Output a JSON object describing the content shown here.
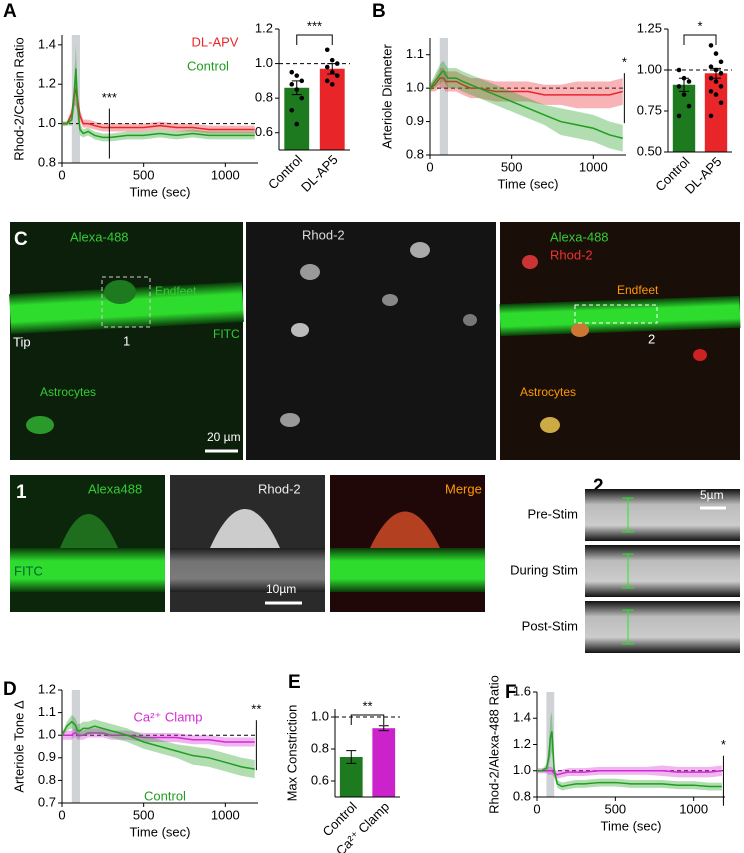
{
  "chart_data": [
    {
      "type": "line",
      "panel": "A",
      "ylabel": "Rhod-2/Calcein Ratio",
      "xlabel": "Time (sec)",
      "xlim": [
        0,
        1200
      ],
      "xticks": [
        0,
        500,
        1000
      ],
      "ylim": [
        0.8,
        1.45
      ],
      "yticks": [
        0.8,
        {
          "value": 1,
          "label": "1.0"
        },
        1.2,
        1.4
      ],
      "shaded": [
        60,
        110
      ],
      "hline": 1,
      "annotations": [
        {
          "text": "***",
          "x": 290
        }
      ],
      "x": [
        0,
        30,
        60,
        75,
        85,
        95,
        110,
        130,
        160,
        200,
        250,
        300,
        400,
        500,
        600,
        700,
        800,
        900,
        1000,
        1100,
        1180
      ],
      "series": [
        {
          "name": "DL-APV",
          "color": "#e8262a",
          "values": [
            1.0,
            1.0,
            1.05,
            1.15,
            1.17,
            1.12,
            1.04,
            1.0,
            1.0,
            0.99,
            0.98,
            0.98,
            0.98,
            0.98,
            0.99,
            0.98,
            0.98,
            0.97,
            0.97,
            0.97,
            0.97
          ],
          "errors": [
            0.01,
            0.01,
            0.03,
            0.06,
            0.08,
            0.06,
            0.03,
            0.02,
            0.02,
            0.02,
            0.02,
            0.02,
            0.02,
            0.02,
            0.02,
            0.02,
            0.02,
            0.02,
            0.02,
            0.02,
            0.02
          ]
        },
        {
          "name": "Control",
          "color": "#1f9e1f",
          "values": [
            1.0,
            1.0,
            1.02,
            1.15,
            1.28,
            1.1,
            0.97,
            0.95,
            0.96,
            0.94,
            0.93,
            0.93,
            0.94,
            0.94,
            0.95,
            0.94,
            0.95,
            0.94,
            0.94,
            0.94,
            0.94
          ],
          "errors": [
            0.01,
            0.01,
            0.03,
            0.08,
            0.12,
            0.08,
            0.03,
            0.02,
            0.02,
            0.02,
            0.02,
            0.02,
            0.02,
            0.02,
            0.02,
            0.02,
            0.02,
            0.02,
            0.02,
            0.02,
            0.02
          ]
        }
      ]
    },
    {
      "type": "bar",
      "categories": [
        "Control",
        "DL-AP5"
      ],
      "values": [
        0.86,
        0.97
      ],
      "errors": [
        0.04,
        0.03
      ],
      "colors": [
        "#1e7a1e",
        "#e8262a"
      ],
      "points": [
        [
          0.95,
          0.93,
          0.9,
          0.88,
          0.85,
          0.8,
          0.73,
          0.65
        ],
        [
          1.08,
          1.02,
          1.0,
          0.98,
          0.95,
          0.93,
          0.9,
          0.88
        ]
      ],
      "ylim": [
        0.5,
        1.2
      ],
      "yticks": [
        0.6,
        0.8,
        {
          "value": 1,
          "label": "1.0"
        },
        1.2
      ],
      "hline": 1,
      "significance": "***"
    },
    {
      "type": "line",
      "panel": "B",
      "ylabel": "Arteriole Diameter",
      "xlabel": "Time (sec)",
      "xlim": [
        0,
        1200
      ],
      "xticks": [
        0,
        500,
        1000
      ],
      "ylim": [
        0.8,
        1.15
      ],
      "yticks": [
        0.8,
        0.9,
        {
          "value": 1,
          "label": "1.0"
        },
        1.1
      ],
      "shaded": [
        60,
        110
      ],
      "hline": 1,
      "annotations": [
        {
          "text": "*",
          "x": 1190
        }
      ],
      "x": [
        0,
        30,
        60,
        75,
        85,
        95,
        110,
        130,
        160,
        200,
        250,
        300,
        400,
        500,
        600,
        700,
        800,
        900,
        1000,
        1100,
        1180
      ],
      "series": [
        {
          "color": "#e8262a",
          "values": [
            1.0,
            1.01,
            1.03,
            1.03,
            1.03,
            1.02,
            1.02,
            1.02,
            1.02,
            1.01,
            1.0,
            1.0,
            0.99,
            0.99,
            0.99,
            0.98,
            0.98,
            0.98,
            0.98,
            0.98,
            0.99
          ],
          "errors": [
            0.01,
            0.02,
            0.03,
            0.03,
            0.03,
            0.03,
            0.03,
            0.03,
            0.03,
            0.03,
            0.03,
            0.03,
            0.03,
            0.03,
            0.03,
            0.03,
            0.03,
            0.04,
            0.04,
            0.04,
            0.04
          ]
        },
        {
          "color": "#1f9e1f",
          "values": [
            1.0,
            1.02,
            1.04,
            1.05,
            1.05,
            1.04,
            1.03,
            1.03,
            1.03,
            1.02,
            1.01,
            1.0,
            0.98,
            0.96,
            0.94,
            0.92,
            0.9,
            0.89,
            0.88,
            0.86,
            0.85
          ],
          "errors": [
            0.01,
            0.02,
            0.03,
            0.03,
            0.03,
            0.03,
            0.03,
            0.03,
            0.03,
            0.03,
            0.03,
            0.03,
            0.03,
            0.03,
            0.03,
            0.03,
            0.04,
            0.04,
            0.04,
            0.04,
            0.04
          ]
        }
      ]
    },
    {
      "type": "bar",
      "categories": [
        "Control",
        "DL-AP5"
      ],
      "values": [
        0.91,
        0.98
      ],
      "errors": [
        0.04,
        0.03
      ],
      "colors": [
        "#1e7a1e",
        "#e8262a"
      ],
      "points": [
        [
          1.0,
          0.95,
          0.93,
          0.9,
          0.85,
          0.78,
          0.72
        ],
        [
          1.15,
          1.1,
          1.05,
          1.02,
          1.0,
          0.98,
          0.95,
          0.93,
          0.9,
          0.87,
          0.85,
          0.8,
          0.72
        ]
      ],
      "ylim": [
        0.5,
        1.25
      ],
      "yticks": [
        {
          "value": 0.5,
          "label": "0.50"
        },
        0.75,
        {
          "value": 1,
          "label": "1.00"
        },
        1.25
      ],
      "hline": 1,
      "significance": "*"
    },
    {
      "type": "line",
      "panel": "D",
      "ylabel": "Arteriole Tone Δ",
      "xlabel": "Time (sec)",
      "xlim": [
        0,
        1200
      ],
      "xticks": [
        0,
        500,
        1000
      ],
      "ylim": [
        0.7,
        1.2
      ],
      "yticks": [
        0.7,
        0.8,
        0.9,
        {
          "value": 1,
          "label": "1.0"
        },
        1.1,
        1.2
      ],
      "shaded": [
        60,
        110
      ],
      "hline": 1,
      "annotations": [
        {
          "text": "**",
          "x": 1190
        }
      ],
      "x": [
        0,
        30,
        60,
        75,
        85,
        95,
        110,
        130,
        160,
        200,
        250,
        300,
        400,
        500,
        600,
        700,
        800,
        900,
        1000,
        1100,
        1180
      ],
      "series": [
        {
          "name": "Ca²⁺ Clamp",
          "color": "#d42ad4",
          "values": [
            1.0,
            1.0,
            1.0,
            1.01,
            1.01,
            1.0,
            1.0,
            1.0,
            1.01,
            1.01,
            1.01,
            1.0,
            1.0,
            0.99,
            0.99,
            0.99,
            0.98,
            0.98,
            0.97,
            0.97,
            0.97
          ],
          "errors": [
            0.02,
            0.02,
            0.02,
            0.02,
            0.02,
            0.02,
            0.02,
            0.02,
            0.02,
            0.02,
            0.02,
            0.02,
            0.02,
            0.02,
            0.02,
            0.02,
            0.02,
            0.02,
            0.02,
            0.02,
            0.02
          ]
        },
        {
          "name": "Control",
          "color": "#1f9e1f",
          "values": [
            1.0,
            1.04,
            1.06,
            1.05,
            1.04,
            1.02,
            1.02,
            1.03,
            1.03,
            1.04,
            1.03,
            1.02,
            1.0,
            0.97,
            0.95,
            0.93,
            0.91,
            0.9,
            0.88,
            0.86,
            0.85
          ],
          "errors": [
            0.01,
            0.02,
            0.03,
            0.03,
            0.03,
            0.03,
            0.03,
            0.03,
            0.03,
            0.03,
            0.03,
            0.03,
            0.03,
            0.03,
            0.03,
            0.03,
            0.04,
            0.04,
            0.04,
            0.04,
            0.04
          ]
        }
      ]
    },
    {
      "type": "bar",
      "panel": "E",
      "ylabel": "Max Constriction",
      "categories": [
        "Control",
        "Ca²⁺ Clamp"
      ],
      "values": [
        0.75,
        0.93
      ],
      "errors": [
        0.04,
        0.015
      ],
      "colors": [
        "#1e7a1e",
        "#cc22cc"
      ],
      "ylim": [
        0.5,
        1.05
      ],
      "yticks": [
        0.6,
        0.8,
        {
          "value": 1,
          "label": "1.0"
        }
      ],
      "hline": 1,
      "significance": "**"
    },
    {
      "type": "line",
      "panel": "F",
      "ylabel": "Rhod-2/Alexa-488 Ratio",
      "xlabel": "Time (sec)",
      "xlim": [
        0,
        1200
      ],
      "xticks": [
        0,
        500,
        1000
      ],
      "ylim": [
        0.8,
        1.6
      ],
      "yticks": [
        0.8,
        {
          "value": 1,
          "label": "1.0"
        },
        1.2,
        1.4,
        1.6
      ],
      "shaded": [
        60,
        110
      ],
      "hline": 1,
      "annotations": [
        {
          "text": "*",
          "x": 1190
        }
      ],
      "x": [
        0,
        30,
        60,
        75,
        85,
        95,
        110,
        130,
        160,
        200,
        250,
        300,
        400,
        500,
        600,
        700,
        800,
        900,
        1000,
        1100,
        1180
      ],
      "series": [
        {
          "color": "#d42ad4",
          "values": [
            1.0,
            1.0,
            1.0,
            1.0,
            1.0,
            1.0,
            0.98,
            0.97,
            0.98,
            0.99,
            0.99,
            0.99,
            1.0,
            1.0,
            1.0,
            1.0,
            1.0,
            0.99,
            0.99,
            0.99,
            1.0
          ],
          "errors": [
            0.02,
            0.02,
            0.02,
            0.03,
            0.03,
            0.03,
            0.03,
            0.03,
            0.03,
            0.03,
            0.03,
            0.03,
            0.03,
            0.03,
            0.03,
            0.03,
            0.04,
            0.04,
            0.04,
            0.04,
            0.04
          ]
        },
        {
          "color": "#1f9e1f",
          "values": [
            1.0,
            1.0,
            1.02,
            1.1,
            1.25,
            1.3,
            1.0,
            0.9,
            0.88,
            0.89,
            0.9,
            0.9,
            0.91,
            0.91,
            0.9,
            0.9,
            0.9,
            0.89,
            0.89,
            0.88,
            0.88
          ],
          "errors": [
            0.01,
            0.01,
            0.03,
            0.08,
            0.15,
            0.15,
            0.05,
            0.03,
            0.03,
            0.03,
            0.03,
            0.03,
            0.03,
            0.03,
            0.03,
            0.03,
            0.03,
            0.03,
            0.03,
            0.03,
            0.03
          ]
        }
      ]
    }
  ],
  "image_panels": {
    "C": {
      "letter": "C",
      "tile1": {
        "title": "Alexa-488",
        "endfeet": "Endfeet",
        "fitc": "FITC",
        "tip": "Tip",
        "roi": "1",
        "astrocytes": "Astrocytes",
        "scale": "20 µm"
      },
      "tile2": {
        "title": "Rhod-2"
      },
      "tile3": {
        "title1": "Alexa-488",
        "title2": "Rhod-2",
        "endfeet": "Endfeet",
        "roi": "2",
        "astrocytes": "Astrocytes"
      }
    },
    "roi1": {
      "letter": "1",
      "green": "Alexa488",
      "fitc": "FITC",
      "red": "Rhod-2",
      "scale": "10µm",
      "merge": "Merge"
    },
    "roi2": {
      "letter": "2",
      "scale": "5µm",
      "rows": [
        "Pre-Stim",
        "During Stim",
        "Post-Stim"
      ]
    }
  }
}
